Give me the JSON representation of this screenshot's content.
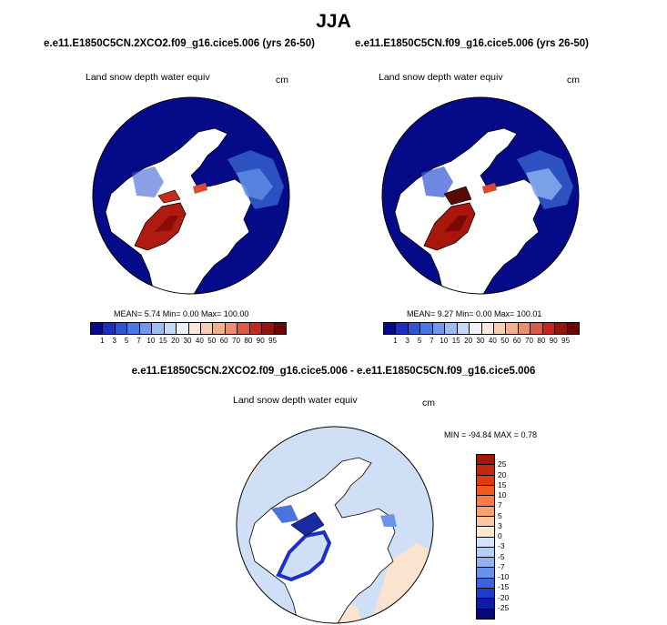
{
  "title": "JJA",
  "panels": [
    {
      "case": "e.e11.E1850C5CN.2XCO2.f09_g16.cice5.006 (yrs 26-50)",
      "field": "Land snow depth water equiv",
      "unit": "cm",
      "stats": "MEAN=   5.74  Min=   0.00  Max= 100.00"
    },
    {
      "case": "e.e11.E1850C5CN.f09_g16.cice5.006 (yrs 26-50)",
      "field": "Land snow depth water equiv",
      "unit": "cm",
      "stats": "MEAN=   9.27  Min=   0.00  Max= 100.01"
    }
  ],
  "diff": {
    "case": "e.e11.E1850C5CN.2XCO2.f09_g16.cice5.006 - e.e11.E1850C5CN.f09_g16.cice5.006",
    "field": "Land snow depth water equiv",
    "unit": "cm",
    "stats": "MIN = -94.84 MAX =   0.78"
  },
  "colorbars": {
    "absolute": {
      "orientation": "horizontal",
      "labels": [
        "1",
        "3",
        "5",
        "7",
        "10",
        "15",
        "20",
        "30",
        "40",
        "50",
        "60",
        "70",
        "80",
        "90",
        "95"
      ],
      "colors": [
        "#08088c",
        "#1c30c0",
        "#2c55d8",
        "#4878e8",
        "#7098f0",
        "#9cbcf4",
        "#c4d8f8",
        "#eef2fc",
        "#fbe8dc",
        "#f8cdb4",
        "#f4ae92",
        "#ec8c70",
        "#dc5a44",
        "#c02a1c",
        "#96140e",
        "#6e0606"
      ]
    },
    "difference": {
      "orientation": "vertical",
      "labels": [
        "25",
        "20",
        "15",
        "10",
        "7",
        "5",
        "3",
        "0",
        "-3",
        "-5",
        "-7",
        "-10",
        "-15",
        "-20",
        "-25"
      ],
      "colors": [
        "#a01808",
        "#c02810",
        "#dc3c10",
        "#f05a20",
        "#f87c48",
        "#fca070",
        "#fdc8a0",
        "#fde8d0",
        "#d4e4f8",
        "#b6cef4",
        "#90b2f0",
        "#6a92e8",
        "#3c62dc",
        "#1c3ccc",
        "#0c1ca8",
        "#06087a"
      ]
    }
  },
  "map_colors": {
    "ocean_panel": "#050b88",
    "land_snowfree": "#ffffff",
    "greenland": "#b01a10",
    "coast": "#000000",
    "diff_light_blue": "#cfe0f6",
    "diff_peach": "#fbe3cf"
  }
}
